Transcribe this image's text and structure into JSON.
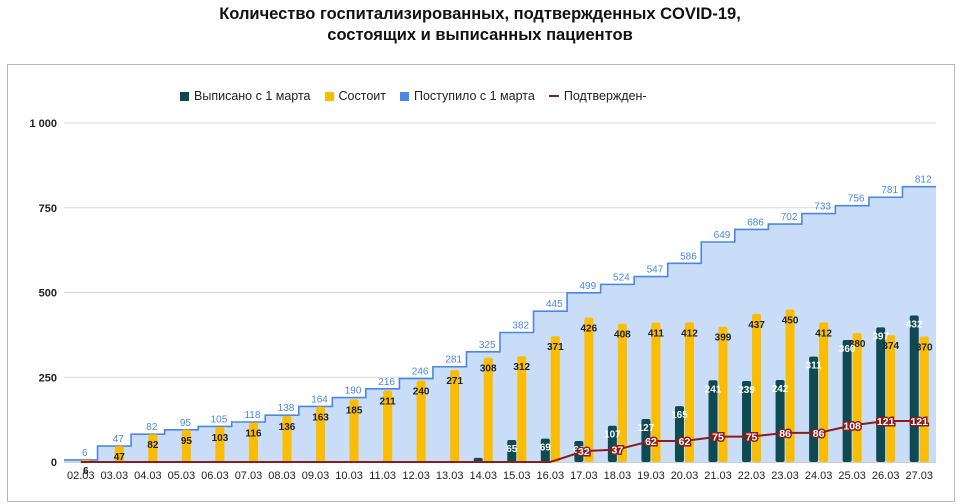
{
  "title_line1": "Количество госпитализированных, подтвержденных COVID-19,",
  "title_line2": "состоящих и выписанных пациентов",
  "colors": {
    "discharged": "#0d4a52",
    "current": "#fbbc04",
    "admitted_area": "#c9dcf8",
    "admitted_line": "#4a86e8",
    "confirmed": "#8b1d1d"
  },
  "chart_data": {
    "type": "bar",
    "title": "Количество госпитализированных, подтвержденных COVID-19, состоящих и выписанных пациентов",
    "xlabel": "",
    "ylabel": "",
    "ylim": [
      0,
      1000
    ],
    "yticks": [
      0,
      250,
      500,
      750,
      1000
    ],
    "ytick_labels": [
      "0",
      "250",
      "500",
      "750",
      "1 000"
    ],
    "grid": true,
    "legend_position": "top",
    "categories": [
      "02.03",
      "03.03",
      "04.03",
      "05.03",
      "06.03",
      "07.03",
      "08.03",
      "09.03",
      "10.03",
      "11.03",
      "12.03",
      "13.03",
      "14.03",
      "15.03",
      "16.03",
      "17.03",
      "18.03",
      "19.03",
      "20.03",
      "21.03",
      "22.03",
      "23.03",
      "24.03",
      "25.03",
      "26.03",
      "27.03"
    ],
    "series": [
      {
        "name": "Выписано с 1 марта",
        "type": "bar",
        "values": [
          0,
          0,
          0,
          0,
          0,
          0,
          0,
          0,
          0,
          0,
          0,
          0,
          12,
          65,
          69,
          62,
          107,
          127,
          165,
          241,
          239,
          242,
          311,
          360,
          397,
          432
        ]
      },
      {
        "name": "Состоит",
        "type": "bar",
        "values": [
          6,
          47,
          82,
          95,
          103,
          116,
          136,
          163,
          185,
          211,
          240,
          271,
          308,
          312,
          371,
          426,
          408,
          411,
          412,
          399,
          437,
          450,
          412,
          380,
          374,
          370
        ]
      },
      {
        "name": "Поступило с 1 марта",
        "type": "area",
        "values": [
          6,
          47,
          82,
          95,
          105,
          118,
          138,
          164,
          190,
          216,
          246,
          281,
          325,
          382,
          445,
          499,
          524,
          547,
          586,
          649,
          686,
          702,
          733,
          756,
          781,
          812
        ]
      },
      {
        "name": "Подтвержден-",
        "type": "line",
        "values": [
          0,
          0,
          0,
          0,
          0,
          0,
          0,
          0,
          0,
          0,
          0,
          0,
          0,
          0,
          0,
          32,
          37,
          62,
          62,
          75,
          75,
          86,
          86,
          108,
          121,
          121
        ]
      }
    ]
  }
}
